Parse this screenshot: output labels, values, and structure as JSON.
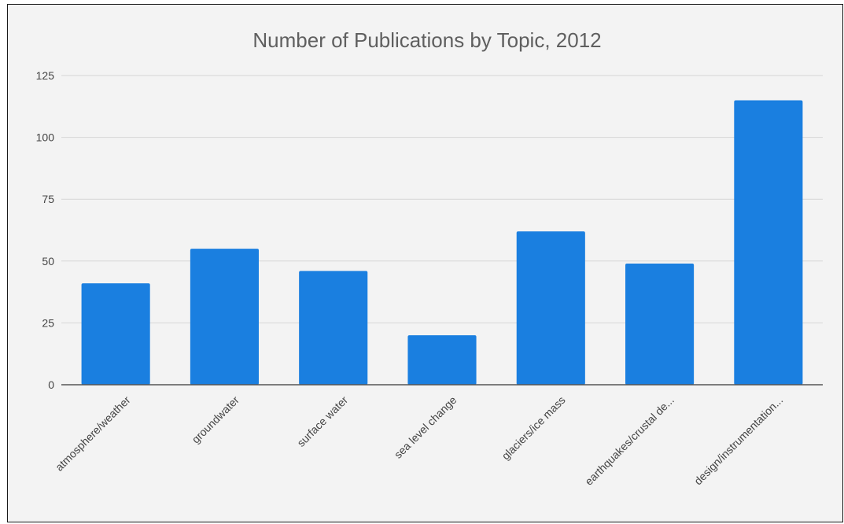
{
  "chart_data": {
    "type": "bar",
    "title": "Number of Publications by Topic, 2012",
    "xlabel": "",
    "ylabel": "",
    "categories": [
      "atmosphere/weather",
      "groundwater",
      "surface water",
      "sea level change",
      "glaciers/ice mass",
      "earthquakes/crustal de...",
      "design/instrumentation..."
    ],
    "values": [
      41,
      55,
      46,
      20,
      62,
      49,
      115
    ],
    "ylim": [
      0,
      125
    ],
    "yticks": [
      "0",
      "25",
      "50",
      "75",
      "100",
      "125"
    ],
    "grid": true,
    "legend": "none",
    "colors": {
      "bar": "#1a7fe0",
      "background": "#f3f3f3",
      "gridline": "#d6d6d6",
      "axis": "#555555"
    }
  }
}
